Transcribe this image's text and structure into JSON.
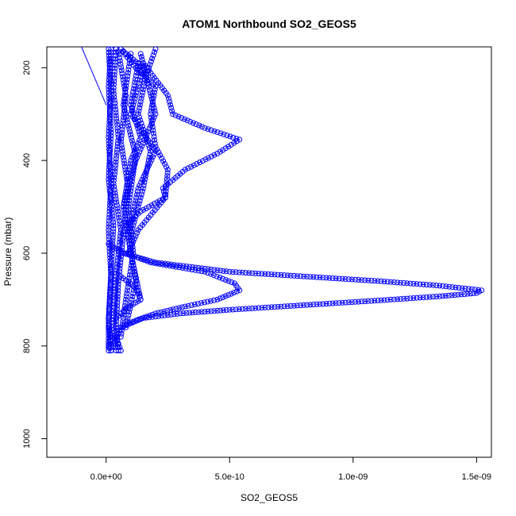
{
  "chart_data": {
    "type": "scatter",
    "title": "ATOM1 Northbound SO2_GEOS5",
    "xlabel": "SO2_GEOS5",
    "ylabel": "Pressure (mbar)",
    "xlim": [
      -2.4e-10,
      1.56e-09
    ],
    "ylim": [
      1040,
      155
    ],
    "y_reversed": true,
    "x_ticks": [
      {
        "value": 0,
        "label": "0.0e+00"
      },
      {
        "value": 5e-10,
        "label": "5.0e-10"
      },
      {
        "value": 1e-09,
        "label": "1.0e-09"
      },
      {
        "value": 1.5e-09,
        "label": "1.5e-09"
      }
    ],
    "y_ticks": [
      {
        "value": 200,
        "label": "200"
      },
      {
        "value": 400,
        "label": "400"
      },
      {
        "value": 600,
        "label": "600"
      },
      {
        "value": 800,
        "label": "800"
      },
      {
        "value": 1000,
        "label": "1000"
      }
    ],
    "marker": "open-circle",
    "line_style": "dashed",
    "color": "#0000ff",
    "series": [
      {
        "points": [
          [
            -1e-10,
            155
          ],
          [
            0,
            280
          ]
        ],
        "line_style": "solid",
        "marker": "none"
      },
      {
        "points": [
          [
            1e-11,
            160
          ],
          [
            2e-11,
            250
          ],
          [
            1e-11,
            350
          ],
          [
            2e-11,
            450
          ],
          [
            1e-11,
            550
          ],
          [
            2e-11,
            650
          ],
          [
            1e-11,
            750
          ],
          [
            1e-11,
            810
          ]
        ]
      },
      {
        "points": [
          [
            2e-11,
            160
          ],
          [
            1e-11,
            240
          ],
          [
            2e-11,
            340
          ],
          [
            1e-11,
            440
          ],
          [
            3e-11,
            540
          ],
          [
            2e-11,
            640
          ],
          [
            1e-11,
            740
          ],
          [
            2e-11,
            810
          ]
        ]
      },
      {
        "points": [
          [
            4e-11,
            160
          ],
          [
            3e-11,
            250
          ],
          [
            5e-11,
            350
          ],
          [
            3e-11,
            450
          ],
          [
            6e-11,
            550
          ],
          [
            4e-11,
            650
          ],
          [
            3e-11,
            750
          ],
          [
            4e-11,
            810
          ]
        ]
      },
      {
        "points": [
          [
            5e-11,
            165
          ],
          [
            8e-11,
            260
          ],
          [
            6e-11,
            360
          ],
          [
            9e-11,
            460
          ],
          [
            7e-11,
            560
          ],
          [
            5e-11,
            660
          ],
          [
            4e-11,
            760
          ],
          [
            5e-11,
            810
          ]
        ]
      },
      {
        "points": [
          [
            1e-10,
            170
          ],
          [
            7e-11,
            280
          ],
          [
            1.2e-10,
            390
          ],
          [
            9e-11,
            500
          ],
          [
            1.1e-10,
            600
          ],
          [
            8e-11,
            700
          ],
          [
            6e-11,
            780
          ]
        ]
      },
      {
        "points": [
          [
            6e-11,
            160
          ],
          [
            1.5e-10,
            200
          ],
          [
            1e-10,
            300
          ],
          [
            2e-10,
            380
          ],
          [
            1.3e-10,
            460
          ],
          [
            9e-11,
            560
          ],
          [
            1.2e-10,
            660
          ],
          [
            8e-11,
            760
          ]
        ]
      },
      {
        "points": [
          [
            1.4e-10,
            170
          ],
          [
            2e-10,
            300
          ],
          [
            1.2e-10,
            400
          ],
          [
            7e-11,
            500
          ],
          [
            1e-10,
            600
          ],
          [
            1.4e-10,
            700
          ]
        ]
      },
      {
        "points": [
          [
            2e-10,
            160
          ],
          [
            1.6e-10,
            220
          ],
          [
            1.3e-10,
            300
          ],
          [
            1.8e-10,
            380
          ],
          [
            1.5e-10,
            460
          ],
          [
            1e-10,
            560
          ]
        ]
      },
      {
        "points": [
          [
            6e-11,
            160
          ],
          [
            1.2e-10,
            200
          ],
          [
            2e-10,
            240
          ],
          [
            1.8e-10,
            300
          ],
          [
            2e-10,
            370
          ],
          [
            2.5e-10,
            420
          ],
          [
            2.4e-10,
            480
          ],
          [
            1.3e-10,
            550
          ],
          [
            9e-11,
            600
          ]
        ]
      },
      {
        "points": [
          [
            1.5e-10,
            190
          ],
          [
            2.5e-10,
            260
          ],
          [
            2.7e-10,
            300
          ],
          [
            4e-10,
            330
          ],
          [
            5.4e-10,
            355
          ],
          [
            4.5e-10,
            385
          ],
          [
            3.2e-10,
            420
          ],
          [
            2.3e-10,
            460
          ],
          [
            2.4e-10,
            480
          ],
          [
            1.4e-10,
            510
          ],
          [
            8e-11,
            540
          ]
        ]
      },
      {
        "points": [
          [
            1.3e-10,
            190
          ],
          [
            1e-10,
            280
          ],
          [
            1.4e-10,
            350
          ],
          [
            1e-10,
            400
          ],
          [
            7e-11,
            500
          ]
        ]
      },
      {
        "points": [
          [
            1e-11,
            580
          ],
          [
            7e-11,
            600
          ],
          [
            2e-10,
            620
          ],
          [
            5e-10,
            640
          ],
          [
            8e-10,
            650
          ],
          [
            1.1e-09,
            660
          ],
          [
            1.35e-09,
            670
          ],
          [
            1.52e-09,
            680
          ],
          [
            1.5e-09,
            686
          ],
          [
            1.35e-09,
            693
          ],
          [
            1.1e-09,
            702
          ],
          [
            8e-10,
            712
          ],
          [
            5e-10,
            722
          ],
          [
            3e-10,
            730
          ],
          [
            1.5e-10,
            740
          ],
          [
            6e-11,
            760
          ],
          [
            3e-11,
            800
          ]
        ]
      },
      {
        "points": [
          [
            8e-11,
            600
          ],
          [
            1.8e-10,
            620
          ],
          [
            4e-10,
            640
          ],
          [
            5.2e-10,
            665
          ],
          [
            5.4e-10,
            680
          ],
          [
            4.5e-10,
            700
          ],
          [
            3.2e-10,
            715
          ],
          [
            2e-10,
            730
          ],
          [
            1.2e-10,
            745
          ],
          [
            6e-11,
            760
          ]
        ]
      },
      {
        "points": [
          [
            6e-11,
            650
          ],
          [
            1.2e-10,
            675
          ],
          [
            1.4e-10,
            700
          ],
          [
            8e-11,
            720
          ],
          [
            4e-11,
            740
          ]
        ]
      },
      {
        "points": [
          [
            1e-11,
            760
          ],
          [
            2e-11,
            780
          ],
          [
            1e-11,
            800
          ],
          [
            2e-11,
            810
          ]
        ]
      },
      {
        "points": [
          [
            4e-11,
            780
          ],
          [
            5e-11,
            795
          ],
          [
            6e-11,
            810
          ]
        ]
      }
    ]
  }
}
